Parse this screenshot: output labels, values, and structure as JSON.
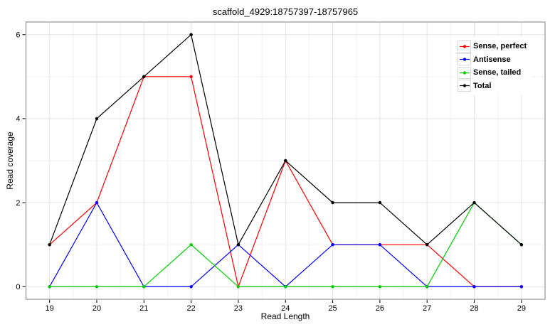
{
  "chart_data": {
    "type": "line",
    "title": "scaffold_4929:18757397-18757965",
    "xlabel": "Read Length",
    "ylabel": "Read coverage",
    "x": [
      19,
      20,
      21,
      22,
      23,
      24,
      25,
      26,
      27,
      28,
      29
    ],
    "series": [
      {
        "name": "Sense, perfect",
        "color": "#ff0000",
        "values": [
          1,
          2,
          5,
          5,
          0,
          3,
          1,
          1,
          1,
          0,
          0
        ]
      },
      {
        "name": "Antisense",
        "color": "#0000ff",
        "values": [
          0,
          2,
          0,
          0,
          1,
          0,
          1,
          1,
          0,
          0,
          0
        ]
      },
      {
        "name": "Sense, tailed",
        "color": "#00cc00",
        "values": [
          0,
          0,
          0,
          1,
          0,
          0,
          0,
          0,
          0,
          2,
          1
        ]
      },
      {
        "name": "Total",
        "color": "#000000",
        "values": [
          1,
          4,
          5,
          6,
          1,
          3,
          2,
          2,
          1,
          2,
          1
        ]
      }
    ],
    "xticks": [
      19,
      20,
      21,
      22,
      23,
      24,
      25,
      26,
      27,
      28,
      29
    ],
    "yticks": [
      0,
      2,
      4,
      6
    ],
    "xlim": [
      18.5,
      29.5
    ],
    "ylim": [
      -0.3,
      6.3
    ],
    "grid": "major+minor",
    "legend_position": "top-right",
    "panel_border_color": "#a8a8a8",
    "major_grid_color": "#e4e4e4",
    "minor_grid_color": "#f1f1f1"
  }
}
